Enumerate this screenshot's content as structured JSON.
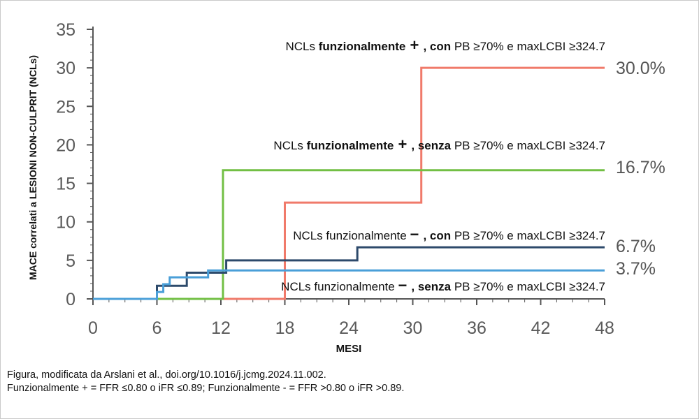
{
  "caption": {
    "line1": "Figura, modificata da Arslani et al., doi.org/10.1016/j.jcmg.2024.11.002.",
    "line2": "Funzionalmente + = FFR ≤0.80 o iFR ≤0.89; Funzionalmente - = FFR >0.80 o iFR >0.89."
  },
  "chart_data": {
    "type": "line",
    "step": true,
    "xlabel": "MESI",
    "ylabel": "MACE correlati a LESIONI NON-CULPRIT (NCLs)",
    "xlim": [
      0,
      48
    ],
    "ylim": [
      0,
      35
    ],
    "xticks": [
      0,
      6,
      12,
      18,
      24,
      30,
      36,
      42,
      48
    ],
    "yticks": [
      0,
      5,
      10,
      15,
      20,
      25,
      30,
      35
    ],
    "grid": false,
    "series": [
      {
        "name_parts": [
          "NCLs ",
          "funzionalmente",
          " + ",
          ", con",
          "  PB ≥70% e maxLCBI ≥324.7"
        ],
        "end_label": "30.0%",
        "color": "#f07a6a",
        "points": [
          [
            0,
            0
          ],
          [
            12.2,
            0
          ],
          [
            18,
            0
          ],
          [
            18,
            12.5
          ],
          [
            30.8,
            12.5
          ],
          [
            30.8,
            30
          ],
          [
            48,
            30
          ]
        ]
      },
      {
        "name_parts": [
          "NCLs ",
          "funzionalmente",
          " + ",
          ", senza",
          "  PB ≥70% e maxLCBI ≥324.7"
        ],
        "end_label": "16.7%",
        "color": "#72bf44",
        "points": [
          [
            0,
            0
          ],
          [
            12.2,
            0
          ],
          [
            12.2,
            16.7
          ],
          [
            48,
            16.7
          ]
        ]
      },
      {
        "name_parts": [
          "NCLs funzionalmente ",
          "",
          " − ",
          ", con",
          "  PB ≥70% e maxLCBI ≥324.7"
        ],
        "end_label": "6.7%",
        "color": "#2d4a6b",
        "points": [
          [
            0,
            0
          ],
          [
            6,
            0
          ],
          [
            6,
            1.7
          ],
          [
            8.8,
            1.7
          ],
          [
            8.8,
            3.4
          ],
          [
            12.5,
            3.4
          ],
          [
            12.5,
            5
          ],
          [
            24.8,
            5
          ],
          [
            24.8,
            6.7
          ],
          [
            48,
            6.7
          ]
        ]
      },
      {
        "name_parts": [
          "NCLs funzionalmente ",
          "",
          " − ",
          ", senza",
          "  PB ≥70% e maxLCBI ≥324.7"
        ],
        "end_label": "3.7%",
        "color": "#4a9fd8",
        "points": [
          [
            0,
            0
          ],
          [
            6,
            0
          ],
          [
            6,
            0.9
          ],
          [
            6.6,
            0.9
          ],
          [
            6.6,
            1.9
          ],
          [
            7.2,
            1.9
          ],
          [
            7.2,
            2.8
          ],
          [
            10.8,
            2.8
          ],
          [
            10.8,
            3.7
          ],
          [
            48,
            3.7
          ]
        ]
      }
    ]
  }
}
